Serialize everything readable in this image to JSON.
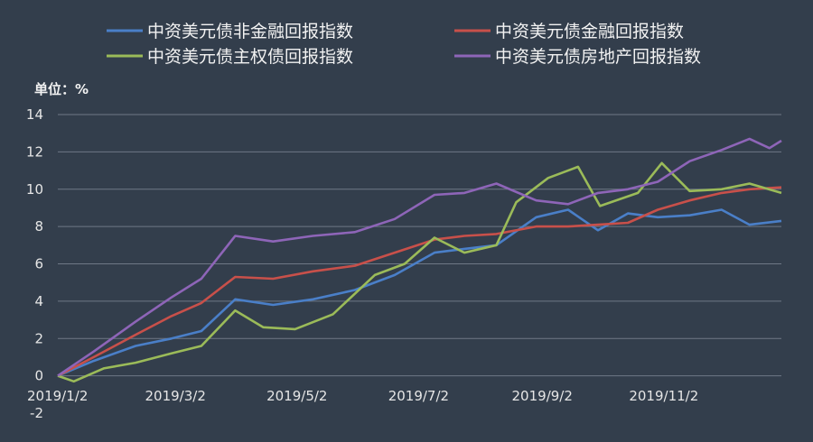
{
  "chart_data": {
    "type": "line",
    "unit_label": "单位：%",
    "ylim": [
      -2,
      14
    ],
    "yticks": [
      "14",
      "12",
      "10",
      "8",
      "6",
      "4",
      "2",
      "0",
      "-2"
    ],
    "xtick_labels": [
      "2019/1/2",
      "2019/3/2",
      "2019/5/2",
      "2019/7/2",
      "2019/9/2",
      "2019/11/2"
    ],
    "grid": true,
    "legend_position": "top",
    "series": [
      {
        "name": "中资美元债非金融回报指数",
        "color": "#4a7fc8",
        "points": [
          [
            "2019/1/2",
            0.0
          ],
          [
            "2019/1/20",
            0.8
          ],
          [
            "2019/2/10",
            1.6
          ],
          [
            "2019/2/28",
            2.0
          ],
          [
            "2019/3/15",
            2.4
          ],
          [
            "2019/4/1",
            4.1
          ],
          [
            "2019/4/20",
            3.8
          ],
          [
            "2019/5/10",
            4.1
          ],
          [
            "2019/5/31",
            4.6
          ],
          [
            "2019/6/20",
            5.4
          ],
          [
            "2019/7/10",
            6.6
          ],
          [
            "2019/7/25",
            6.8
          ],
          [
            "2019/8/10",
            7.0
          ],
          [
            "2019/8/30",
            8.5
          ],
          [
            "2019/9/15",
            8.9
          ],
          [
            "2019/9/30",
            7.8
          ],
          [
            "2019/10/15",
            8.7
          ],
          [
            "2019/10/30",
            8.5
          ],
          [
            "2019/11/15",
            8.6
          ],
          [
            "2019/12/1",
            8.9
          ],
          [
            "2019/12/15",
            8.1
          ],
          [
            "2019/12/31",
            8.3
          ]
        ]
      },
      {
        "name": "中资美元债金融回报指数",
        "color": "#c8504a",
        "points": [
          [
            "2019/1/2",
            0.0
          ],
          [
            "2019/1/20",
            1.0
          ],
          [
            "2019/2/10",
            2.2
          ],
          [
            "2019/2/28",
            3.2
          ],
          [
            "2019/3/15",
            3.9
          ],
          [
            "2019/4/1",
            5.3
          ],
          [
            "2019/4/20",
            5.2
          ],
          [
            "2019/5/10",
            5.6
          ],
          [
            "2019/5/31",
            5.9
          ],
          [
            "2019/6/20",
            6.6
          ],
          [
            "2019/7/10",
            7.3
          ],
          [
            "2019/7/25",
            7.5
          ],
          [
            "2019/8/10",
            7.6
          ],
          [
            "2019/8/30",
            8.0
          ],
          [
            "2019/9/15",
            8.0
          ],
          [
            "2019/9/30",
            8.1
          ],
          [
            "2019/10/15",
            8.2
          ],
          [
            "2019/10/30",
            8.9
          ],
          [
            "2019/11/15",
            9.4
          ],
          [
            "2019/12/1",
            9.8
          ],
          [
            "2019/12/15",
            10.0
          ],
          [
            "2019/12/31",
            10.1
          ]
        ]
      },
      {
        "name": "中资美元债主权债回报指数",
        "color": "#9bbb59",
        "points": [
          [
            "2019/1/2",
            0.0
          ],
          [
            "2019/1/10",
            -0.3
          ],
          [
            "2019/1/25",
            0.4
          ],
          [
            "2019/2/10",
            0.7
          ],
          [
            "2019/2/28",
            1.2
          ],
          [
            "2019/3/15",
            1.6
          ],
          [
            "2019/4/1",
            3.5
          ],
          [
            "2019/4/15",
            2.6
          ],
          [
            "2019/5/1",
            2.5
          ],
          [
            "2019/5/20",
            3.3
          ],
          [
            "2019/6/10",
            5.4
          ],
          [
            "2019/6/25",
            6.0
          ],
          [
            "2019/7/10",
            7.4
          ],
          [
            "2019/7/25",
            6.6
          ],
          [
            "2019/8/10",
            7.0
          ],
          [
            "2019/8/20",
            9.3
          ],
          [
            "2019/9/5",
            10.6
          ],
          [
            "2019/9/20",
            11.2
          ],
          [
            "2019/10/1",
            9.1
          ],
          [
            "2019/10/20",
            9.8
          ],
          [
            "2019/11/1",
            11.4
          ],
          [
            "2019/11/15",
            9.9
          ],
          [
            "2019/12/1",
            10.0
          ],
          [
            "2019/12/15",
            10.3
          ],
          [
            "2019/12/31",
            9.8
          ]
        ]
      },
      {
        "name": "中资美元债房地产回报指数",
        "color": "#8e65b8",
        "points": [
          [
            "2019/1/2",
            0.0
          ],
          [
            "2019/1/20",
            1.3
          ],
          [
            "2019/2/10",
            2.9
          ],
          [
            "2019/2/28",
            4.2
          ],
          [
            "2019/3/15",
            5.2
          ],
          [
            "2019/4/1",
            7.5
          ],
          [
            "2019/4/20",
            7.2
          ],
          [
            "2019/5/10",
            7.5
          ],
          [
            "2019/5/31",
            7.7
          ],
          [
            "2019/6/20",
            8.4
          ],
          [
            "2019/7/10",
            9.7
          ],
          [
            "2019/7/25",
            9.8
          ],
          [
            "2019/8/10",
            10.3
          ],
          [
            "2019/8/30",
            9.4
          ],
          [
            "2019/9/15",
            9.2
          ],
          [
            "2019/9/30",
            9.8
          ],
          [
            "2019/10/15",
            10.0
          ],
          [
            "2019/10/30",
            10.4
          ],
          [
            "2019/11/15",
            11.5
          ],
          [
            "2019/12/1",
            12.1
          ],
          [
            "2019/12/15",
            12.7
          ],
          [
            "2019/12/25",
            12.2
          ],
          [
            "2019/12/31",
            12.6
          ]
        ]
      }
    ]
  }
}
